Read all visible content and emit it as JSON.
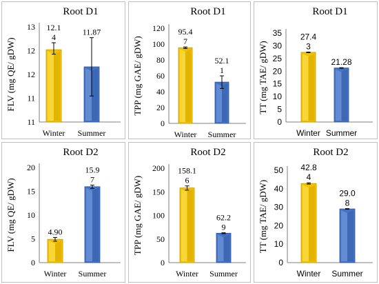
{
  "colors": {
    "winter_fill": "#f2c200",
    "winter_light": "#ffe866",
    "winter_dark": "#c79a00",
    "summer_fill": "#4472c4",
    "summer_light": "#7ea0e0",
    "summer_dark": "#2f559c",
    "panel_border": "#bfbfbf",
    "axis": "#7f7f7f"
  },
  "chart_data": [
    {
      "type": "bar",
      "title": "Root D1",
      "ylabel": "FLV (mg QE/ gDW)",
      "categories": [
        "Winter",
        "Summer"
      ],
      "values": [
        12.14,
        11.87
      ],
      "value_labels": [
        [
          "12.1",
          "4"
        ],
        [
          "11.87"
        ]
      ],
      "error_low": [
        12.07,
        11.41
      ],
      "error_high": [
        12.25,
        12.33
      ],
      "yticks": [
        "11",
        "11",
        "12",
        "12",
        "13"
      ],
      "ylim": [
        11.0,
        12.5
      ],
      "label_font": "serif"
    },
    {
      "type": "bar",
      "title": "Root D1",
      "ylabel": "TPP (mg GAE/ gDW)",
      "categories": [
        "Winter",
        "Summer"
      ],
      "values": [
        95.47,
        52.1
      ],
      "value_labels": [
        [
          "95.4",
          "7"
        ],
        [
          "52.1",
          "1"
        ]
      ],
      "error_low": [
        94.5,
        44.0
      ],
      "error_high": [
        96.4,
        60.0
      ],
      "yticks": [
        "0",
        "20",
        "40",
        "60",
        "80",
        "100",
        "120"
      ],
      "ylim": [
        0,
        120
      ],
      "label_font": "serif"
    },
    {
      "type": "bar",
      "title": "Root D1",
      "ylabel": "TT (mg TAE/ gDW)",
      "categories": [
        "Winter",
        "Summer"
      ],
      "values": [
        27.43,
        21.28
      ],
      "value_labels": [
        [
          "27.4",
          "3"
        ],
        [
          "21.28"
        ]
      ],
      "error_low": [
        27.3,
        21.15
      ],
      "error_high": [
        27.55,
        21.4
      ],
      "yticks": [
        "0",
        "5",
        "10",
        "15",
        "20",
        "25",
        "30",
        "35"
      ],
      "ylim": [
        0,
        35
      ],
      "label_font": "sans"
    },
    {
      "type": "bar",
      "title": "Root D2",
      "ylabel": "FLV (mg QE/ gDW)",
      "categories": [
        "Winter",
        "Summer"
      ],
      "values": [
        4.9,
        15.97
      ],
      "value_labels": [
        [
          "4.90"
        ],
        [
          "15.9",
          "7"
        ]
      ],
      "error_low": [
        4.5,
        15.6
      ],
      "error_high": [
        5.3,
        16.3
      ],
      "yticks": [
        "0",
        "5",
        "10",
        "15",
        "20"
      ],
      "ylim": [
        0,
        20
      ],
      "label_font": "serif"
    },
    {
      "type": "bar",
      "title": "Root D2",
      "ylabel": "TPP (mg GAE/ gDW)",
      "categories": [
        "Winter",
        "Summer"
      ],
      "values": [
        158.16,
        62.29
      ],
      "value_labels": [
        [
          "158.1",
          "6"
        ],
        [
          "62.2",
          "9"
        ]
      ],
      "error_low": [
        153.5,
        61.3
      ],
      "error_high": [
        162.5,
        63.3
      ],
      "yticks": [
        "0",
        "50",
        "100",
        "150",
        "200"
      ],
      "ylim": [
        0,
        200
      ],
      "label_font": "serif"
    },
    {
      "type": "bar",
      "title": "Root D2",
      "ylabel": "TT (mg TAE/ gDW)",
      "categories": [
        "Winter",
        "Summer"
      ],
      "values": [
        42.84,
        29.08
      ],
      "value_labels": [
        [
          "42.8",
          "4"
        ],
        [
          "29.0",
          "8"
        ]
      ],
      "error_low": [
        42.5,
        28.9
      ],
      "error_high": [
        43.2,
        29.25
      ],
      "yticks": [
        "0",
        "10",
        "20",
        "30",
        "40",
        "50"
      ],
      "ylim": [
        0,
        50
      ],
      "label_font": "sans"
    }
  ]
}
